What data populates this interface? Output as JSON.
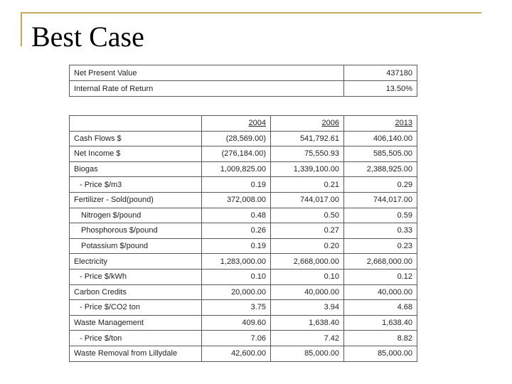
{
  "slide": {
    "title": "Best Case"
  },
  "summary_table": {
    "rows": [
      {
        "label": "Net Present Value",
        "value": "437180"
      },
      {
        "label": "Internal Rate of Return",
        "value": "13.50%"
      }
    ]
  },
  "main_table": {
    "years": [
      "2004",
      "2006",
      "2013"
    ],
    "rows": [
      {
        "label": "Cash Flows $",
        "values": [
          "(28,569.00)",
          "541,792.61",
          "406,140.00"
        ]
      },
      {
        "label": "Net Income $",
        "values": [
          "(276,184.00)",
          "75,550.93",
          "585,505.00"
        ]
      },
      {
        "label": "Biogas",
        "values": [
          "1,009,825.00",
          "1,339,100.00",
          "2,388,925.00"
        ]
      },
      {
        "label": "- Price $/m3",
        "values": [
          "0.19",
          "0.21",
          "0.29"
        ]
      },
      {
        "label": "Fertilizer - Sold(pound)",
        "values": [
          "372,008.00",
          "744,017.00",
          "744,017.00"
        ]
      },
      {
        "label": "Nitrogen $/pound",
        "values": [
          "0.48",
          "0.50",
          "0.59"
        ]
      },
      {
        "label": "Phosphorous $/pound",
        "values": [
          "0.26",
          "0.27",
          "0.33"
        ]
      },
      {
        "label": "Potassium $/pound",
        "values": [
          "0.19",
          "0.20",
          "0.23"
        ]
      },
      {
        "label": "Electricity",
        "values": [
          "1,283,000.00",
          "2,668,000.00",
          "2,668,000.00"
        ]
      },
      {
        "label": "- Price $/kWh",
        "values": [
          "0.10",
          "0.10",
          "0.12"
        ]
      },
      {
        "label": "Carbon Credits",
        "values": [
          "20,000.00",
          "40,000.00",
          "40,000.00"
        ]
      },
      {
        "label": "- Price $/CO2 ton",
        "values": [
          "3.75",
          "3.94",
          "4.68"
        ]
      },
      {
        "label": "Waste Management",
        "values": [
          "409.60",
          "1,638.40",
          "1,638.40"
        ]
      },
      {
        "label": "- Price $/ton",
        "values": [
          "7.06",
          "7.42",
          "8.82"
        ]
      },
      {
        "label": "Waste Removal from Lillydale",
        "values": [
          "42,600.00",
          "85,000.00",
          "85,000.00"
        ]
      }
    ]
  }
}
